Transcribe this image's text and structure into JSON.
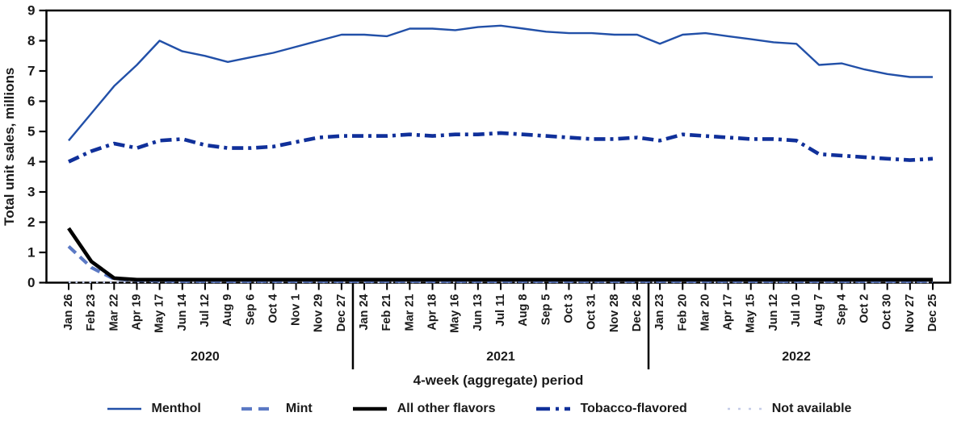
{
  "chart_data": {
    "type": "line",
    "xlabel": "4-week (aggregate) period",
    "ylabel": "Total unit sales, millions",
    "ylim": [
      0,
      9
    ],
    "ytick_interval": 1,
    "grid": false,
    "legend_position": "bottom",
    "background_color": "#ffffff",
    "axis_color": "#000000",
    "year_groups": [
      {
        "label": "2020",
        "count": 13
      },
      {
        "label": "2021",
        "count": 13
      },
      {
        "label": "2022",
        "count": 13
      }
    ],
    "categories": [
      "Jan 26",
      "Feb 23",
      "Mar 22",
      "Apr 19",
      "May 17",
      "Jun 14",
      "Jul 12",
      "Aug 9",
      "Sep 6",
      "Oct 4",
      "Nov 1",
      "Nov 29",
      "Dec 27",
      "Jan 24",
      "Feb 21",
      "Mar 21",
      "Apr 18",
      "May 16",
      "Jun 13",
      "Jul 11",
      "Aug 8",
      "Sep 5",
      "Oct 3",
      "Oct 31",
      "Nov 28",
      "Dec 26",
      "Jan 23",
      "Feb 20",
      "Mar 20",
      "Apr 17",
      "May 15",
      "Jun 12",
      "Jul 10",
      "Aug 7",
      "Sep 4",
      "Oct 2",
      "Oct 30",
      "Nov 27",
      "Dec 25"
    ],
    "series": [
      {
        "name": "Menthol",
        "color": "#2250a8",
        "style": "solid",
        "width": 2.4,
        "values": [
          4.7,
          5.6,
          6.5,
          7.2,
          8.0,
          7.65,
          7.5,
          7.3,
          7.45,
          7.6,
          7.8,
          8.0,
          8.2,
          8.2,
          8.15,
          8.4,
          8.4,
          8.35,
          8.45,
          8.5,
          8.4,
          8.3,
          8.25,
          8.25,
          8.2,
          8.2,
          7.9,
          8.2,
          8.25,
          8.15,
          8.05,
          7.95,
          7.9,
          7.2,
          7.25,
          7.05,
          6.9,
          6.8,
          6.8
        ]
      },
      {
        "name": "Mint",
        "color": "#5b79c4",
        "style": "dashed",
        "width": 4.2,
        "values": [
          1.2,
          0.5,
          0.12,
          0.08,
          0.06,
          0.05,
          0.05,
          0.05,
          0.05,
          0.05,
          0.05,
          0.05,
          0.05,
          0.05,
          0.05,
          0.05,
          0.05,
          0.05,
          0.05,
          0.05,
          0.05,
          0.05,
          0.05,
          0.05,
          0.05,
          0.05,
          0.05,
          0.05,
          0.05,
          0.05,
          0.05,
          0.05,
          0.05,
          0.05,
          0.05,
          0.05,
          0.05,
          0.05,
          0.05
        ]
      },
      {
        "name": "All other flavors",
        "color": "#000000",
        "style": "solid",
        "width": 4.6,
        "values": [
          1.8,
          0.7,
          0.15,
          0.1,
          0.1,
          0.1,
          0.1,
          0.1,
          0.1,
          0.1,
          0.1,
          0.1,
          0.1,
          0.1,
          0.1,
          0.1,
          0.1,
          0.1,
          0.1,
          0.1,
          0.1,
          0.1,
          0.1,
          0.1,
          0.1,
          0.1,
          0.1,
          0.1,
          0.1,
          0.1,
          0.1,
          0.1,
          0.1,
          0.1,
          0.1,
          0.1,
          0.1,
          0.1,
          0.1
        ]
      },
      {
        "name": "Tobacco-flavored",
        "color": "#10309a",
        "style": "dashdot",
        "width": 4.6,
        "values": [
          4.0,
          4.35,
          4.6,
          4.45,
          4.7,
          4.75,
          4.55,
          4.45,
          4.45,
          4.5,
          4.65,
          4.8,
          4.85,
          4.85,
          4.85,
          4.9,
          4.85,
          4.9,
          4.9,
          4.95,
          4.9,
          4.85,
          4.8,
          4.75,
          4.75,
          4.8,
          4.7,
          4.9,
          4.85,
          4.8,
          4.75,
          4.75,
          4.7,
          4.25,
          4.2,
          4.15,
          4.1,
          4.05,
          4.1
        ]
      },
      {
        "name": "Not available",
        "color": "#c4cce8",
        "style": "dotted",
        "width": 2.6,
        "values": [
          0.02,
          0.02,
          0.02,
          0.02,
          0.02,
          0.02,
          0.02,
          0.02,
          0.02,
          0.02,
          0.02,
          0.02,
          0.02,
          0.02,
          0.02,
          0.02,
          0.02,
          0.02,
          0.02,
          0.02,
          0.02,
          0.02,
          0.02,
          0.02,
          0.02,
          0.02,
          0.02,
          0.02,
          0.02,
          0.02,
          0.02,
          0.02,
          0.02,
          0.02,
          0.02,
          0.02,
          0.02,
          0.02,
          0.02
        ]
      }
    ]
  }
}
